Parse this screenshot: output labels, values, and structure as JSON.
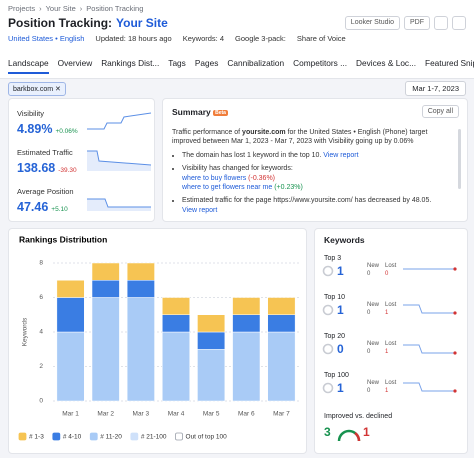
{
  "breadcrumbs": [
    "Projects",
    "Your Site",
    "Position Tracking"
  ],
  "header": {
    "title": "Position Tracking:",
    "site": "Your Site",
    "buttons": [
      "Looker Studio",
      "PDF"
    ]
  },
  "filters": {
    "location": "United States • English",
    "updated": "Updated: 18 hours ago",
    "keywords": "Keywords: 4",
    "pack": "Google 3-pack:",
    "share": "Share of Voice"
  },
  "tabs": [
    "Landscape",
    "Overview",
    "Rankings Dist...",
    "Tags",
    "Pages",
    "Cannibalization",
    "Competitors ...",
    "Devices & Loc...",
    "Featured Snip..."
  ],
  "chip": "barkbox.com",
  "date": "Mar 1-7, 2023",
  "metrics": [
    {
      "label": "Visibility",
      "value": "4.89%",
      "change": "+0.06%"
    },
    {
      "label": "Estimated Traffic",
      "value": "138.68",
      "change": "-39.30"
    },
    {
      "label": "Average Position",
      "value": "47.46",
      "change": "+5.10"
    }
  ],
  "summary": {
    "title": "Summary",
    "badge": "Beta",
    "copy": "Copy all",
    "intro_pre": "Traffic performance of",
    "domain": "yoursite.com",
    "intro_post": "for the United States • English (Phone) target improved between Mar 1, 2023 - Mar 7, 2023 with Visibility going up by 0.06%",
    "items": [
      {
        "text": "The domain has lost 1 keyword in the top 10.",
        "link": "View report"
      },
      {
        "text": "Visibility has changed for keywords:",
        "keywords": [
          {
            "keyword": "where to buy flowers",
            "change": "(-0.36%)"
          },
          {
            "keyword": "where to get flowers near me",
            "change": "(+0.23%)"
          }
        ]
      },
      {
        "text": "Estimated traffic for the page https://www.yoursite.com/ has decreased by 48.05.",
        "link": "View report"
      }
    ]
  },
  "chart_data": {
    "type": "stacked_bar",
    "title": "Rankings Distribution",
    "ylabel": "Keywords",
    "categories": [
      "Mar 1",
      "Mar 2",
      "Mar 3",
      "Mar 4",
      "Mar 5",
      "Mar 6",
      "Mar 7"
    ],
    "series": [
      {
        "name": "# 11-20",
        "color": "#a9cbf6",
        "checked": true,
        "values": [
          4,
          6,
          6,
          4,
          3,
          4,
          4
        ]
      },
      {
        "name": "# 4-10",
        "color": "#3a7de3",
        "checked": true,
        "values": [
          2,
          1,
          1,
          1,
          1,
          1,
          1
        ]
      },
      {
        "name": "# 1-3",
        "color": "#f6c453",
        "checked": true,
        "values": [
          1,
          1,
          1,
          1,
          1,
          1,
          1
        ]
      },
      {
        "name": "# 21-100",
        "color": "#cfe1fa",
        "checked": true,
        "values": [
          0,
          0,
          0,
          0,
          0,
          0,
          0
        ]
      },
      {
        "name": "Out of top 100",
        "color": "#c9ccd3",
        "checked": false,
        "values": [
          0,
          0,
          0,
          0,
          0,
          0,
          0
        ]
      }
    ],
    "legend_order": [
      2,
      1,
      0,
      3,
      4
    ],
    "ylim": [
      0,
      8
    ],
    "yticks": [
      0,
      2,
      4,
      6,
      8
    ],
    "grid": true
  },
  "keywords": {
    "title": "Keywords",
    "new_label": "New",
    "lost_label": "Lost",
    "groups": [
      {
        "label": "Top 3",
        "value": 1,
        "new": 0,
        "lost": 0
      },
      {
        "label": "Top 10",
        "value": 1,
        "new": 0,
        "lost": 1
      },
      {
        "label": "Top 20",
        "value": 0,
        "new": 0,
        "lost": 1
      },
      {
        "label": "Top 100",
        "value": 1,
        "new": 0,
        "lost": 1
      }
    ],
    "improved_label": "Improved vs. declined",
    "improved": 3,
    "declined": 1
  }
}
